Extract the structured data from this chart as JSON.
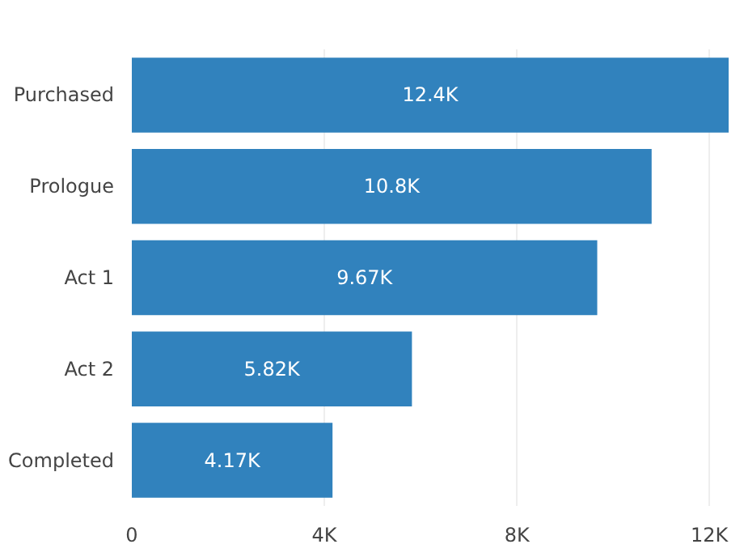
{
  "chart_data": {
    "type": "bar",
    "orientation": "horizontal",
    "categories": [
      "Purchased",
      "Prologue",
      "Act 1",
      "Act 2",
      "Completed"
    ],
    "values": [
      12400,
      10800,
      9670,
      5820,
      4170
    ],
    "value_labels": [
      "12.4K",
      "10.8K",
      "9.67K",
      "5.82K",
      "4.17K"
    ],
    "color": "#3182bd",
    "xlim": [
      0,
      12400
    ],
    "xticks": [
      0,
      {
        "value": 4000,
        "label": "4K"
      },
      {
        "value": 8000,
        "label": "8K"
      },
      {
        "value": 12000,
        "label": "12K"
      }
    ],
    "grid": "x"
  }
}
